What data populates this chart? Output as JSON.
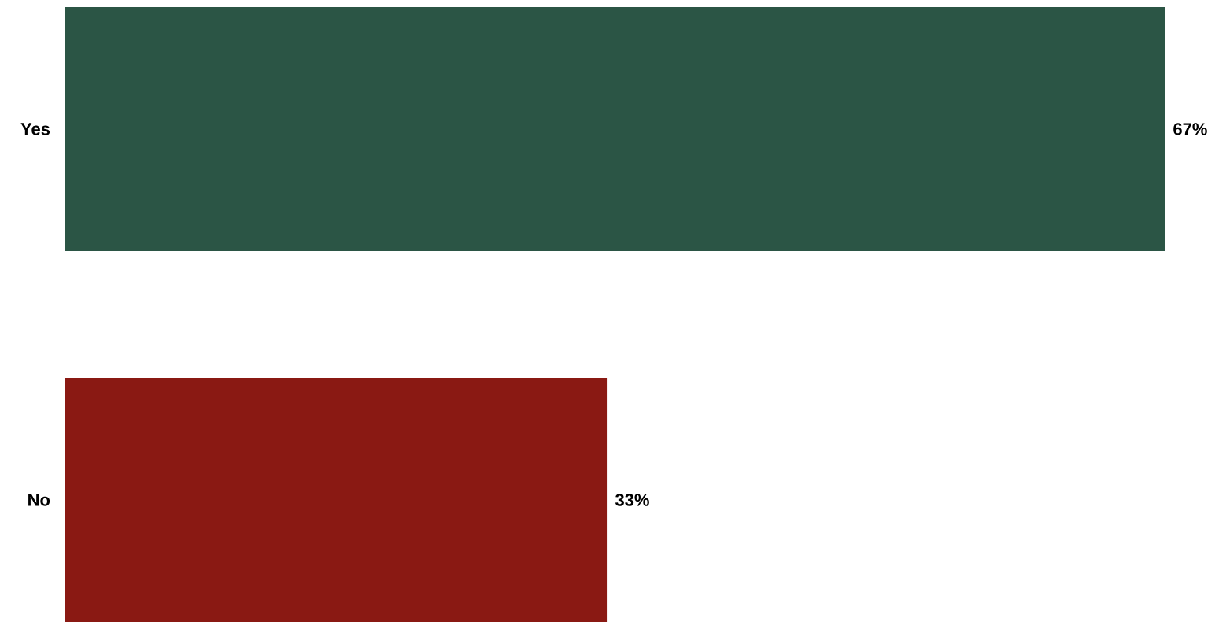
{
  "chart_data": {
    "type": "bar",
    "orientation": "horizontal",
    "categories": [
      "Yes",
      "No"
    ],
    "values": [
      67,
      33
    ],
    "colors": [
      "#2b5545",
      "#8a1913"
    ],
    "value_labels": [
      "67%",
      "33%"
    ]
  }
}
